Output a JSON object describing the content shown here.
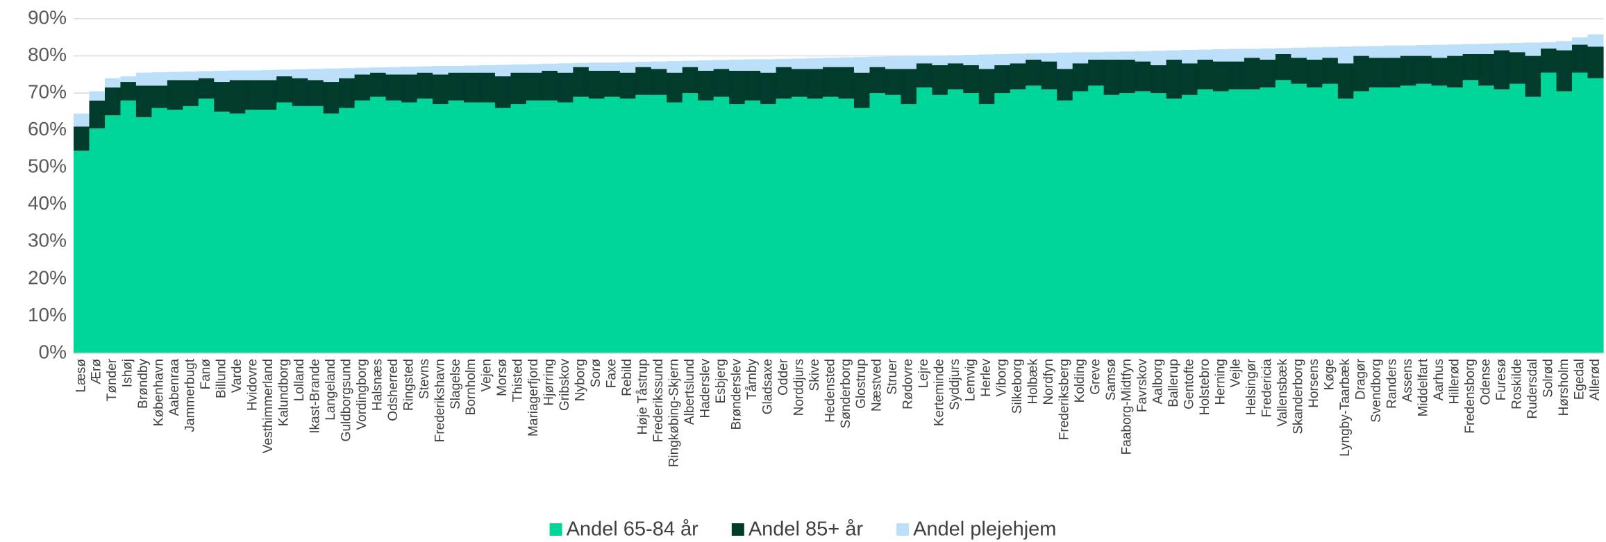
{
  "chart_data": {
    "type": "stacked_bar",
    "categories": [
      "Læsø",
      "Ærø",
      "Tønder",
      "Ishøj",
      "Brøndby",
      "København",
      "Aabenraa",
      "Jammerbugt",
      "Fanø",
      "Billund",
      "Varde",
      "Hvidovre",
      "Vesthimmerland",
      "Kalundborg",
      "Lolland",
      "Ikast-Brande",
      "Langeland",
      "Guldborgsund",
      "Vordingborg",
      "Halsnæs",
      "Odsherred",
      "Ringsted",
      "Stevns",
      "Frederikshavn",
      "Slagelse",
      "Bornholm",
      "Vejen",
      "Morsø",
      "Thisted",
      "Mariagerfjord",
      "Hjørring",
      "Gribskov",
      "Nyborg",
      "Sorø",
      "Faxe",
      "Rebild",
      "Høje Tåstrup",
      "Frederikssund",
      "Ringkøbing-Skjern",
      "Albertslund",
      "Haderslev",
      "Esbjerg",
      "Brønderslev",
      "Tårnby",
      "Gladsaxe",
      "Odder",
      "Norddjurs",
      "Skive",
      "Hedensted",
      "Sønderborg",
      "Glostrup",
      "Næstved",
      "Struer",
      "Rødovre",
      "Lejre",
      "Kerteminde",
      "Syddjurs",
      "Lemvig",
      "Herlev",
      "Viborg",
      "Silkeborg",
      "Holbæk",
      "Nordfyn",
      "Frederiksberg",
      "Kolding",
      "Greve",
      "Samsø",
      "Faaborg-Midtfyn",
      "Favrskov",
      "Aalborg",
      "Ballerup",
      "Gentofte",
      "Holstebro",
      "Herning",
      "Vejle",
      "Helsingør",
      "Fredericia",
      "Vallensbæk",
      "Skanderborg",
      "Horsens",
      "Køge",
      "Lyngby-Taarbæk",
      "Dragør",
      "Svendborg",
      "Randers",
      "Assens",
      "Middelfart",
      "Aarhus",
      "Hillerød",
      "Fredensborg",
      "Odense",
      "Furesø",
      "Roskilde",
      "Rudersdal",
      "Solrød",
      "Hørsholm",
      "Egedal",
      "Allerød"
    ],
    "series": [
      {
        "name": "Andel 65-84 år",
        "color": "#00d69a",
        "values": [
          54.5,
          60.5,
          64,
          68,
          63.5,
          66,
          65.5,
          66.5,
          68.5,
          65,
          64.5,
          65.5,
          65.5,
          67.5,
          66.5,
          66.5,
          64.5,
          66,
          68,
          69,
          68,
          67.5,
          68.5,
          67,
          68,
          67.5,
          67.5,
          66,
          67,
          68,
          68,
          67.5,
          69,
          68.5,
          69,
          68.5,
          69.5,
          69.5,
          67.5,
          70,
          68,
          69,
          67,
          68,
          67,
          68.5,
          69,
          68.5,
          69,
          68.5,
          66,
          70,
          69.5,
          67,
          71.5,
          69.5,
          71,
          70,
          67,
          70,
          71,
          72,
          71,
          68,
          70.5,
          72,
          69.5,
          70,
          70.5,
          70,
          68.5,
          69.5,
          71,
          70.5,
          71,
          71,
          71.5,
          73.5,
          72.5,
          71.5,
          72.5,
          68.5,
          70.5,
          71.5,
          71.5,
          72,
          72.5,
          72,
          71.5,
          73.5,
          72,
          71,
          72.5,
          69,
          75.5,
          70.5,
          75.5,
          74
        ]
      },
      {
        "name": "Andel 85+ år",
        "color": "#003b2c",
        "values": [
          6.5,
          7.5,
          7.5,
          5,
          8.5,
          6,
          8,
          7,
          5.5,
          8,
          9,
          8,
          8,
          7,
          7.5,
          7,
          8.5,
          8,
          7,
          6.5,
          7,
          7.5,
          7,
          8,
          7.5,
          8,
          8,
          8.5,
          8.5,
          7.5,
          8,
          8,
          8,
          7.5,
          7,
          7,
          7.5,
          7,
          8,
          7,
          8,
          7.5,
          9,
          8,
          8.5,
          8.5,
          7.5,
          8,
          8,
          8.5,
          9.5,
          7,
          7,
          9.5,
          6.5,
          8,
          7,
          7.5,
          9.5,
          7.5,
          7,
          7,
          7.5,
          8.5,
          7.5,
          7,
          9.5,
          9,
          8,
          7.5,
          10.5,
          8.5,
          8,
          8,
          7.5,
          8.5,
          7.5,
          7,
          7,
          7.5,
          7,
          9.5,
          9.5,
          8,
          8,
          8,
          7.5,
          7.5,
          8.5,
          7,
          8.5,
          10.5,
          8.5,
          11,
          6.5,
          11,
          7.5,
          8.5
        ]
      },
      {
        "name": "Andel plejehjem",
        "color": "#bde0fa",
        "values": [
          3.5,
          2.5,
          2.5,
          1.5,
          3.5,
          3.6,
          2.2,
          2.3,
          1.9,
          3.0,
          2.6,
          2.6,
          2.7,
          1.8,
          2.4,
          3.0,
          3.6,
          2.7,
          1.8,
          1.4,
          2.0,
          2.1,
          1.7,
          2.3,
          1.8,
          1.9,
          2.0,
          3.1,
          2.2,
          2.3,
          1.9,
          2.5,
          1.1,
          2.2,
          2.2,
          2.8,
          1.4,
          2.0,
          3.1,
          1.7,
          2.8,
          2.4,
          3.0,
          3.1,
          3.6,
          2.2,
          2.8,
          2.9,
          2.5,
          2.6,
          4.2,
          2.8,
          3.4,
          3.5,
          2.1,
          2.6,
          2.2,
          2.8,
          3.9,
          3.0,
          2.6,
          1.7,
          2.3,
          4.4,
          3.0,
          2.0,
          2.1,
          2.2,
          2.8,
          3.9,
          2.5,
          3.6,
          2.7,
          3.3,
          3.4,
          2.4,
          3.0,
          1.6,
          2.7,
          3.3,
          2.9,
          4.5,
          2.6,
          3.2,
          3.3,
          2.8,
          2.9,
          3.5,
          3.1,
          2.7,
          2.8,
          1.9,
          2.5,
          3.6,
          1.7,
          2.5,
          2.0,
          3.3
        ]
      }
    ],
    "ylim": [
      0,
      90
    ],
    "yticks": [
      {
        "value": 0,
        "label": "0%"
      },
      {
        "value": 10,
        "label": "10%"
      },
      {
        "value": 20,
        "label": "20%"
      },
      {
        "value": 30,
        "label": "30%"
      },
      {
        "value": 40,
        "label": "40%"
      },
      {
        "value": 50,
        "label": "50%"
      },
      {
        "value": 60,
        "label": "60%"
      },
      {
        "value": 70,
        "label": "70%"
      },
      {
        "value": 80,
        "label": "80%"
      },
      {
        "value": 90,
        "label": "90%"
      }
    ],
    "grid": true,
    "legend": "bottom"
  }
}
